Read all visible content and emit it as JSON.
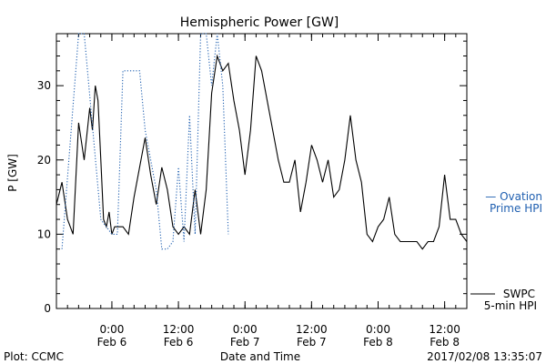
{
  "chart_data": {
    "type": "line",
    "title": "Hemispheric Power [GW]",
    "ylabel": "P [GW]",
    "xlabel": "Date and Time",
    "ylim": [
      0,
      37
    ],
    "yticks": [
      0,
      10,
      20,
      30
    ],
    "xlim": [
      "2017-02-05 14:00",
      "2017-02-08 16:00"
    ],
    "xticks": [
      {
        "time": "2017-02-06 00:00",
        "line1": "0:00",
        "line2": "Feb 6"
      },
      {
        "time": "2017-02-06 12:00",
        "line1": "12:00",
        "line2": "Feb 6"
      },
      {
        "time": "2017-02-07 00:00",
        "line1": "0:00",
        "line2": "Feb 7"
      },
      {
        "time": "2017-02-07 12:00",
        "line1": "12:00",
        "line2": "Feb 7"
      },
      {
        "time": "2017-02-08 00:00",
        "line1": "0:00",
        "line2": "Feb 8"
      },
      {
        "time": "2017-02-08 12:00",
        "line1": "12:00",
        "line2": "Feb 8"
      }
    ],
    "series": [
      {
        "name": "SWPC 5-min HPI",
        "color": "#000000",
        "style": "solid",
        "x": [
          "2017-02-05 14:00",
          "2017-02-05 15:00",
          "2017-02-05 16:00",
          "2017-02-05 17:00",
          "2017-02-05 18:00",
          "2017-02-05 19:00",
          "2017-02-05 20:00",
          "2017-02-05 20:30",
          "2017-02-05 21:00",
          "2017-02-05 21:30",
          "2017-02-05 22:00",
          "2017-02-05 22:30",
          "2017-02-05 23:00",
          "2017-02-05 23:30",
          "2017-02-06 00:00",
          "2017-02-06 00:30",
          "2017-02-06 01:00",
          "2017-02-06 02:00",
          "2017-02-06 03:00",
          "2017-02-06 04:00",
          "2017-02-06 05:00",
          "2017-02-06 06:00",
          "2017-02-06 07:00",
          "2017-02-06 08:00",
          "2017-02-06 09:00",
          "2017-02-06 10:00",
          "2017-02-06 11:00",
          "2017-02-06 12:00",
          "2017-02-06 13:00",
          "2017-02-06 14:00",
          "2017-02-06 15:00",
          "2017-02-06 16:00",
          "2017-02-06 17:00",
          "2017-02-06 18:00",
          "2017-02-06 19:00",
          "2017-02-06 20:00",
          "2017-02-06 21:00",
          "2017-02-06 22:00",
          "2017-02-06 23:00",
          "2017-02-07 00:00",
          "2017-02-07 01:00",
          "2017-02-07 02:00",
          "2017-02-07 03:00",
          "2017-02-07 04:00",
          "2017-02-07 05:00",
          "2017-02-07 06:00",
          "2017-02-07 07:00",
          "2017-02-07 08:00",
          "2017-02-07 09:00",
          "2017-02-07 10:00",
          "2017-02-07 11:00",
          "2017-02-07 12:00",
          "2017-02-07 13:00",
          "2017-02-07 14:00",
          "2017-02-07 15:00",
          "2017-02-07 16:00",
          "2017-02-07 17:00",
          "2017-02-07 18:00",
          "2017-02-07 19:00",
          "2017-02-07 20:00",
          "2017-02-07 21:00",
          "2017-02-07 22:00",
          "2017-02-07 23:00",
          "2017-02-08 00:00",
          "2017-02-08 01:00",
          "2017-02-08 02:00",
          "2017-02-08 03:00",
          "2017-02-08 04:00",
          "2017-02-08 05:00",
          "2017-02-08 06:00",
          "2017-02-08 07:00",
          "2017-02-08 08:00",
          "2017-02-08 09:00",
          "2017-02-08 10:00",
          "2017-02-08 11:00",
          "2017-02-08 12:00",
          "2017-02-08 13:00",
          "2017-02-08 14:00",
          "2017-02-08 15:00",
          "2017-02-08 16:00"
        ],
        "y": [
          14,
          17,
          12,
          10,
          25,
          20,
          27,
          24,
          30,
          28,
          20,
          12,
          11,
          13,
          10,
          11,
          11,
          11,
          10,
          15,
          19,
          23,
          18,
          14,
          19,
          16,
          11,
          10,
          11,
          10,
          16,
          10,
          16,
          29,
          34,
          32,
          33,
          28,
          24,
          18,
          24,
          34,
          32,
          28,
          24,
          20,
          17,
          17,
          20,
          13,
          17,
          22,
          20,
          17,
          20,
          15,
          16,
          20,
          26,
          20,
          17,
          10,
          9,
          11,
          12,
          15,
          10,
          9,
          9,
          9,
          9,
          8,
          9,
          9,
          11,
          18,
          12,
          12,
          10,
          9
        ]
      },
      {
        "name": "Ovation Prime HPI",
        "color": "#1f5fb0",
        "style": "dotted",
        "x": [
          "2017-02-05 15:00",
          "2017-02-05 18:00",
          "2017-02-05 19:00",
          "2017-02-05 22:00",
          "2017-02-05 23:00",
          "2017-02-06 00:00",
          "2017-02-06 01:00",
          "2017-02-06 02:00",
          "2017-02-06 05:00",
          "2017-02-06 06:00",
          "2017-02-06 08:00",
          "2017-02-06 09:00",
          "2017-02-06 10:00",
          "2017-02-06 11:00",
          "2017-02-06 12:00",
          "2017-02-06 13:00",
          "2017-02-06 14:00",
          "2017-02-06 15:00",
          "2017-02-06 16:00",
          "2017-02-06 17:00",
          "2017-02-06 18:00",
          "2017-02-06 19:00",
          "2017-02-06 20:00",
          "2017-02-06 21:00"
        ],
        "y": [
          8,
          37,
          37,
          12,
          11,
          10,
          10,
          32,
          32,
          24,
          16,
          8,
          8,
          9,
          19,
          9,
          26,
          10,
          38,
          38,
          30,
          38,
          30,
          10
        ]
      }
    ],
    "legend": [
      {
        "label": "— Ovation",
        "color": "#1f5fb0"
      },
      {
        "label": "Prime HPI",
        "color": "#1f5fb0"
      },
      {
        "label": "SWPC",
        "color": "#000000"
      },
      {
        "label": "5-min HPI",
        "color": "#000000"
      }
    ],
    "footer": {
      "left": "Plot: CCMC",
      "center": "Date and Time",
      "right": "2017/02/08 13:35:07"
    }
  }
}
